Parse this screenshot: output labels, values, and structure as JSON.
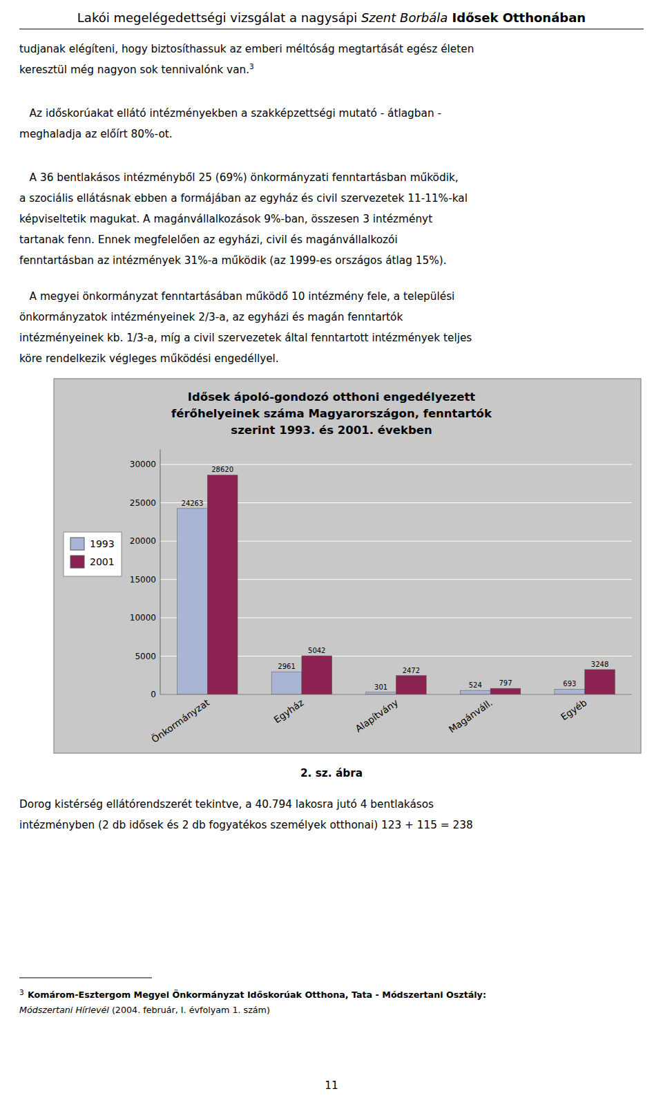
{
  "page_title": [
    "Lakói megelégedettségi vizsgálat a nagysápi ",
    "Szent Borbála",
    " Idősek Otthonában"
  ],
  "paragraphs": [
    [
      "tudjanak elégíteni, hogy biztosíthassuk az emberi méltóság megtartását egész életen",
      "keresztül még nagyon sok tennivalónk van."
    ],
    [
      "   Az időskorúakat ellátó intézményekben a szakképzettségi mutató - átlagban -",
      "meghaladja az előírt 80%-ot."
    ],
    [
      "   A 36 bentlakásos intézményből 25 (69%) önkormányzati fenntartásban működik,",
      "a szociális ellátásnak ebben a formájában az egyház és civil szervezetek 11-11%-kal",
      "képviseltetik magukat. A magánvállalkozások 9%-ban, összesen 3 intézményt",
      "tartanak fenn. Ennek megfelelően az egyházi, civil és magánvállalkozói",
      "fenntartásban az intézmények 31%-a működik (az 1999-es országos átlag 15%)."
    ],
    [
      "   A megyei önkormányzat fenntartásában működő 10 intézmény fele, a települési",
      "önkormányzatok intézményeinek 2/3-a, az egyházi és magán fenntartók",
      "intézményeinek kb. 1/3-a, míg a civil szervezetek által fenntartott intézmények teljes",
      "köre rendelkezik végleges működési engedéllyel."
    ]
  ],
  "footnote_mark": "3",
  "caption": "2. sz. ábra",
  "footer_paragraph": [
    "Dorog kistérség ellátórendszerét tekintve, a 40.794 lakosra jutó 4 bentlakásos",
    "intézményben (2 db idősek és 2 db fogyatékos személyek otthonai) 123 + 115 = 238"
  ],
  "footnote": [
    "Komárom-Esztergom Megyei Önkormányzat Időskorúak Otthona, Tata - Módszertani Osztály:",
    "Módszertani Hírlevél",
    " (2004. február, I. évfolyam 1. szám)"
  ],
  "page_number": "11",
  "chart_data": {
    "type": "bar",
    "title": "Idősek ápoló-gondozó otthoni engedélyezett\nférőhelyeinek száma Magyarországon, fenntartók\nszerint 1993. és 2001. években",
    "categories": [
      "Önkormányzat",
      "Egyház",
      "Alapítvány",
      "Magánváll.",
      "Egyéb"
    ],
    "series": [
      {
        "name": "1993",
        "color": "#aab4d4",
        "values": [
          24263,
          2961,
          301,
          524,
          693
        ]
      },
      {
        "name": "2001",
        "color": "#8b2252",
        "values": [
          28620,
          5042,
          2472,
          797,
          3248
        ]
      }
    ],
    "ylim": [
      0,
      32000
    ],
    "yticks": [
      0,
      5000,
      10000,
      15000,
      20000,
      25000,
      30000
    ],
    "grid": true,
    "legend": "left",
    "data_labels": true
  }
}
